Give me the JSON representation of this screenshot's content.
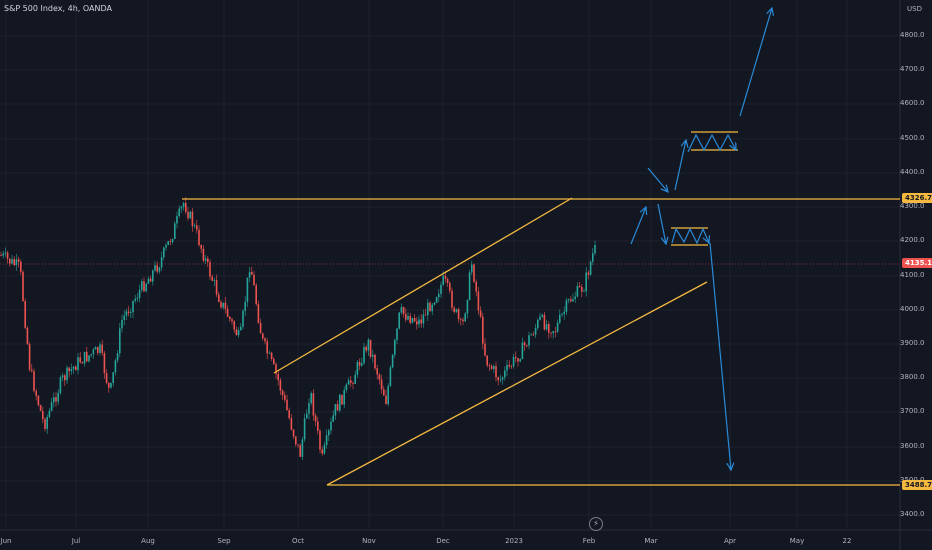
{
  "header": {
    "title": "S&P 500 Index, 4h, OANDA",
    "currency": "USD"
  },
  "yaxis": {
    "ticks": [
      "4800.0",
      "4700.0",
      "4600.0",
      "4500.0",
      "4400.0",
      "4300.0",
      "4200.0",
      "4100.0",
      "4000.0",
      "3900.0",
      "3800.0",
      "3700.0",
      "3600.0",
      "3500.0",
      "3400.0"
    ]
  },
  "xaxis": {
    "ticks": [
      "Jun",
      "Jul",
      "Aug",
      "Sep",
      "Oct",
      "Nov",
      "Dec",
      "2023",
      "Feb",
      "Mar",
      "Apr",
      "May",
      "22"
    ]
  },
  "tags": {
    "resistance": "4326.7",
    "current": "4135.1",
    "support": "3488.7"
  },
  "colors": {
    "background": "#131722",
    "up": "#26a69a",
    "down": "#ef5350",
    "annotation": "#f5b940",
    "arrow": "#2a8bd8"
  },
  "icons": {
    "replay": "lightning-icon"
  }
}
